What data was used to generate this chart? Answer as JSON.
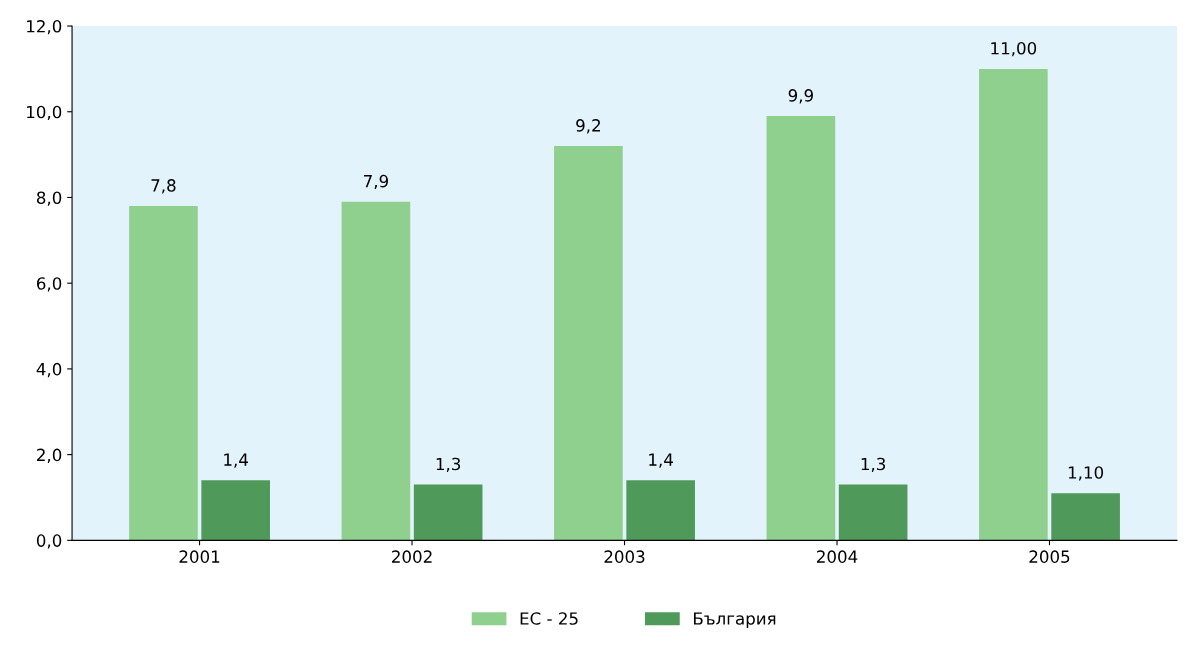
{
  "chart_data": {
    "type": "bar",
    "categories": [
      "2001",
      "2002",
      "2003",
      "2004",
      "2005"
    ],
    "series": [
      {
        "name": "ЕС - 25",
        "color": "#8fd08f",
        "values": [
          7.8,
          7.9,
          9.2,
          9.9,
          11.0
        ],
        "value_labels": [
          "7,8",
          "7,9",
          "9,2",
          "9,9",
          "11,00"
        ]
      },
      {
        "name": "България",
        "color": "#4f9a5a",
        "values": [
          1.4,
          1.3,
          1.4,
          1.3,
          1.1
        ],
        "value_labels": [
          "1,4",
          "1,3",
          "1,4",
          "1,3",
          "1,10"
        ]
      }
    ],
    "ylim": [
      0,
      12
    ],
    "yticks": [
      {
        "value": 0,
        "label": "0,0"
      },
      {
        "value": 2,
        "label": "2,0"
      },
      {
        "value": 4,
        "label": "4,0"
      },
      {
        "value": 6,
        "label": "6,0"
      },
      {
        "value": 8,
        "label": "8,0"
      },
      {
        "value": 10,
        "label": "10,0"
      },
      {
        "value": 12,
        "label": "12,0"
      }
    ],
    "grid": false,
    "legend": "bottom"
  }
}
